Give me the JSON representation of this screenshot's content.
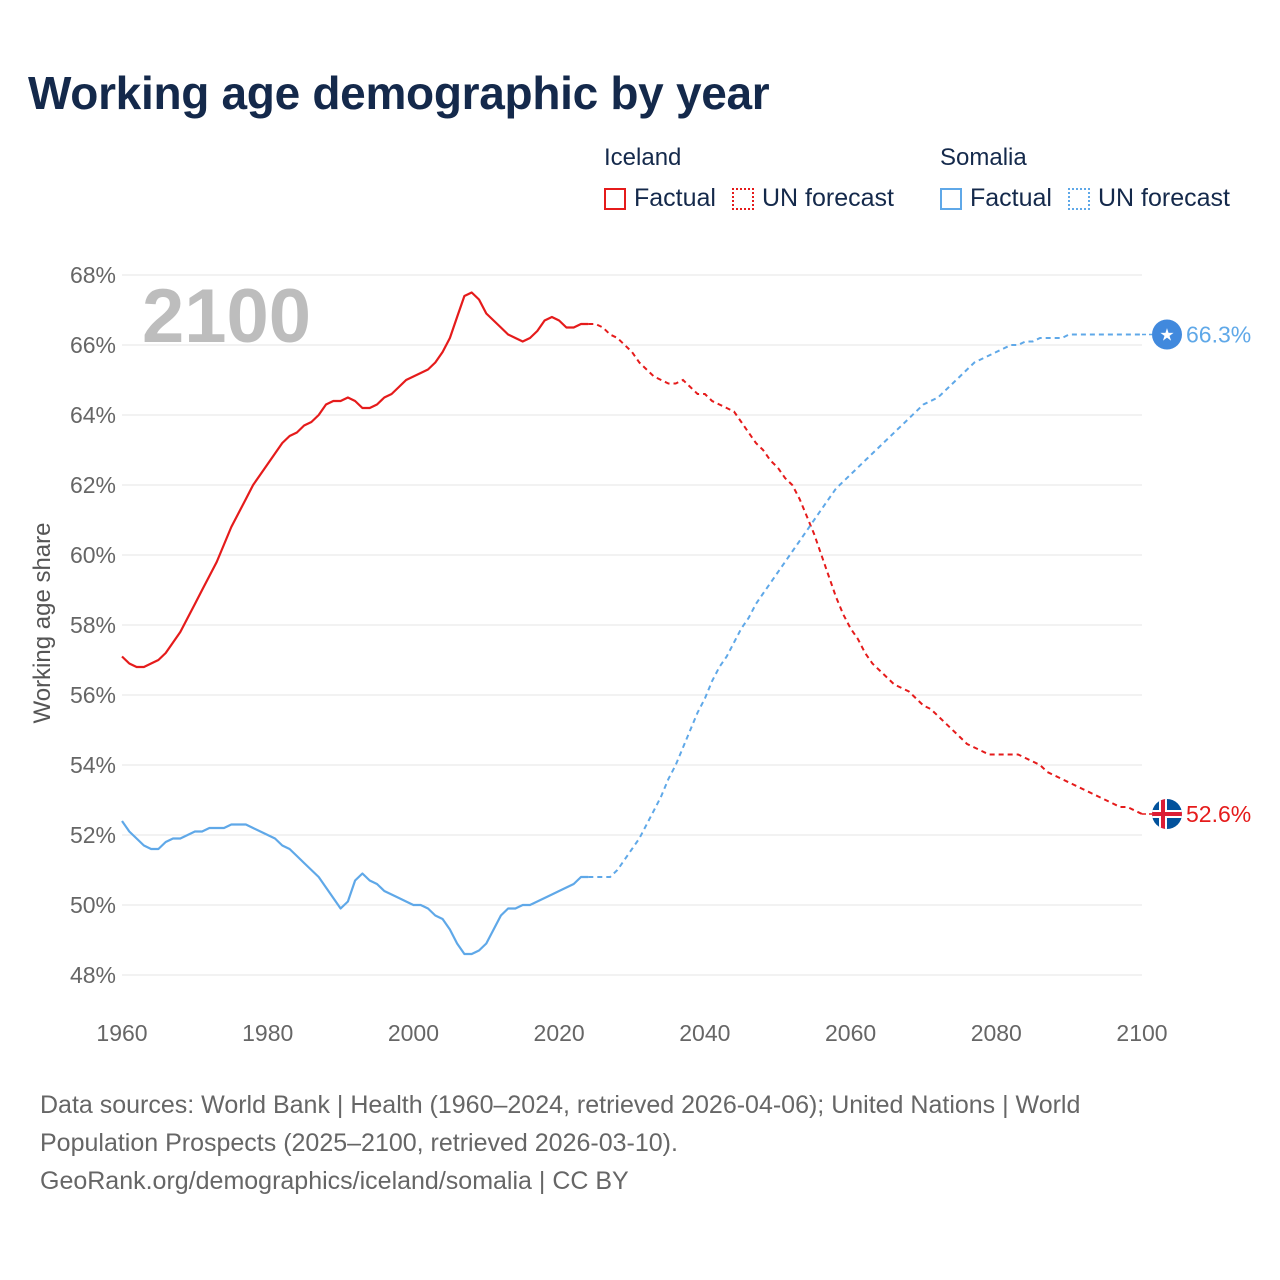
{
  "title": "Working age demographic by year",
  "legend": {
    "groups": [
      {
        "name": "Iceland",
        "factual_label": "Factual",
        "forecast_label": "UN forecast",
        "color": "#e51b1b"
      },
      {
        "name": "Somalia",
        "factual_label": "Factual",
        "forecast_label": "UN forecast",
        "color": "#5fa8e8"
      }
    ]
  },
  "year_overlay": "2100",
  "footer": {
    "line1": "Data sources: World Bank | Health (1960–2024, retrieved 2026-04-06); United Nations | World",
    "line2": "Population Prospects (2025–2100, retrieved 2026-03-10).",
    "line3": "GeoRank.org/demographics/iceland/somalia | CC BY"
  },
  "chart_data": {
    "type": "line",
    "title": "Working age demographic by year",
    "xlabel": "",
    "ylabel": "Working age share",
    "xlim": [
      1960,
      2100
    ],
    "ylim": [
      47,
      68.5
    ],
    "x_ticks": [
      1960,
      1980,
      2000,
      2020,
      2040,
      2060,
      2080,
      2100
    ],
    "y_ticks": [
      48,
      50,
      52,
      54,
      56,
      58,
      60,
      62,
      64,
      66,
      68
    ],
    "y_tick_labels": [
      "48%",
      "50%",
      "52%",
      "54%",
      "56%",
      "58%",
      "60%",
      "62%",
      "64%",
      "66%",
      "68%"
    ],
    "grid": true,
    "factual_end_year": 2024,
    "series": [
      {
        "name": "Iceland",
        "color": "#e51b1b",
        "end_label": "52.6%",
        "points": [
          [
            1960,
            57.1
          ],
          [
            1961,
            56.9
          ],
          [
            1962,
            56.8
          ],
          [
            1963,
            56.8
          ],
          [
            1964,
            56.9
          ],
          [
            1965,
            57.0
          ],
          [
            1966,
            57.2
          ],
          [
            1967,
            57.5
          ],
          [
            1968,
            57.8
          ],
          [
            1969,
            58.2
          ],
          [
            1970,
            58.6
          ],
          [
            1971,
            59.0
          ],
          [
            1972,
            59.4
          ],
          [
            1973,
            59.8
          ],
          [
            1974,
            60.3
          ],
          [
            1975,
            60.8
          ],
          [
            1976,
            61.2
          ],
          [
            1977,
            61.6
          ],
          [
            1978,
            62.0
          ],
          [
            1979,
            62.3
          ],
          [
            1980,
            62.6
          ],
          [
            1981,
            62.9
          ],
          [
            1982,
            63.2
          ],
          [
            1983,
            63.4
          ],
          [
            1984,
            63.5
          ],
          [
            1985,
            63.7
          ],
          [
            1986,
            63.8
          ],
          [
            1987,
            64.0
          ],
          [
            1988,
            64.3
          ],
          [
            1989,
            64.4
          ],
          [
            1990,
            64.4
          ],
          [
            1991,
            64.5
          ],
          [
            1992,
            64.4
          ],
          [
            1993,
            64.2
          ],
          [
            1994,
            64.2
          ],
          [
            1995,
            64.3
          ],
          [
            1996,
            64.5
          ],
          [
            1997,
            64.6
          ],
          [
            1998,
            64.8
          ],
          [
            1999,
            65.0
          ],
          [
            2000,
            65.1
          ],
          [
            2001,
            65.2
          ],
          [
            2002,
            65.3
          ],
          [
            2003,
            65.5
          ],
          [
            2004,
            65.8
          ],
          [
            2005,
            66.2
          ],
          [
            2006,
            66.8
          ],
          [
            2007,
            67.4
          ],
          [
            2008,
            67.5
          ],
          [
            2009,
            67.3
          ],
          [
            2010,
            66.9
          ],
          [
            2011,
            66.7
          ],
          [
            2012,
            66.5
          ],
          [
            2013,
            66.3
          ],
          [
            2014,
            66.2
          ],
          [
            2015,
            66.1
          ],
          [
            2016,
            66.2
          ],
          [
            2017,
            66.4
          ],
          [
            2018,
            66.7
          ],
          [
            2019,
            66.8
          ],
          [
            2020,
            66.7
          ],
          [
            2021,
            66.5
          ],
          [
            2022,
            66.5
          ],
          [
            2023,
            66.6
          ],
          [
            2024,
            66.6
          ],
          [
            2025,
            66.6
          ],
          [
            2026,
            66.5
          ],
          [
            2027,
            66.3
          ],
          [
            2028,
            66.2
          ],
          [
            2029,
            66.0
          ],
          [
            2030,
            65.8
          ],
          [
            2031,
            65.5
          ],
          [
            2032,
            65.3
          ],
          [
            2033,
            65.1
          ],
          [
            2034,
            65.0
          ],
          [
            2035,
            64.9
          ],
          [
            2036,
            64.9
          ],
          [
            2037,
            65.0
          ],
          [
            2038,
            64.8
          ],
          [
            2039,
            64.6
          ],
          [
            2040,
            64.6
          ],
          [
            2041,
            64.4
          ],
          [
            2042,
            64.3
          ],
          [
            2043,
            64.2
          ],
          [
            2044,
            64.1
          ],
          [
            2045,
            63.8
          ],
          [
            2046,
            63.5
          ],
          [
            2047,
            63.2
          ],
          [
            2048,
            63.0
          ],
          [
            2049,
            62.7
          ],
          [
            2050,
            62.5
          ],
          [
            2051,
            62.2
          ],
          [
            2052,
            62.0
          ],
          [
            2053,
            61.6
          ],
          [
            2054,
            61.1
          ],
          [
            2055,
            60.6
          ],
          [
            2056,
            60.0
          ],
          [
            2057,
            59.4
          ],
          [
            2058,
            58.8
          ],
          [
            2059,
            58.3
          ],
          [
            2060,
            57.9
          ],
          [
            2061,
            57.6
          ],
          [
            2062,
            57.2
          ],
          [
            2063,
            56.9
          ],
          [
            2064,
            56.7
          ],
          [
            2065,
            56.5
          ],
          [
            2066,
            56.3
          ],
          [
            2067,
            56.2
          ],
          [
            2068,
            56.1
          ],
          [
            2069,
            55.9
          ],
          [
            2070,
            55.7
          ],
          [
            2071,
            55.6
          ],
          [
            2072,
            55.4
          ],
          [
            2073,
            55.2
          ],
          [
            2074,
            55.0
          ],
          [
            2075,
            54.8
          ],
          [
            2076,
            54.6
          ],
          [
            2077,
            54.5
          ],
          [
            2078,
            54.4
          ],
          [
            2079,
            54.3
          ],
          [
            2080,
            54.3
          ],
          [
            2081,
            54.3
          ],
          [
            2082,
            54.3
          ],
          [
            2083,
            54.3
          ],
          [
            2084,
            54.2
          ],
          [
            2085,
            54.1
          ],
          [
            2086,
            54.0
          ],
          [
            2087,
            53.8
          ],
          [
            2088,
            53.7
          ],
          [
            2089,
            53.6
          ],
          [
            2090,
            53.5
          ],
          [
            2091,
            53.4
          ],
          [
            2092,
            53.3
          ],
          [
            2093,
            53.2
          ],
          [
            2094,
            53.1
          ],
          [
            2095,
            53.0
          ],
          [
            2096,
            52.9
          ],
          [
            2097,
            52.8
          ],
          [
            2098,
            52.8
          ],
          [
            2099,
            52.7
          ],
          [
            2100,
            52.6
          ]
        ]
      },
      {
        "name": "Somalia",
        "color": "#5fa8e8",
        "end_label": "66.3%",
        "points": [
          [
            1960,
            52.4
          ],
          [
            1961,
            52.1
          ],
          [
            1962,
            51.9
          ],
          [
            1963,
            51.7
          ],
          [
            1964,
            51.6
          ],
          [
            1965,
            51.6
          ],
          [
            1966,
            51.8
          ],
          [
            1967,
            51.9
          ],
          [
            1968,
            51.9
          ],
          [
            1969,
            52.0
          ],
          [
            1970,
            52.1
          ],
          [
            1971,
            52.1
          ],
          [
            1972,
            52.2
          ],
          [
            1973,
            52.2
          ],
          [
            1974,
            52.2
          ],
          [
            1975,
            52.3
          ],
          [
            1976,
            52.3
          ],
          [
            1977,
            52.3
          ],
          [
            1978,
            52.2
          ],
          [
            1979,
            52.1
          ],
          [
            1980,
            52.0
          ],
          [
            1981,
            51.9
          ],
          [
            1982,
            51.7
          ],
          [
            1983,
            51.6
          ],
          [
            1984,
            51.4
          ],
          [
            1985,
            51.2
          ],
          [
            1986,
            51.0
          ],
          [
            1987,
            50.8
          ],
          [
            1988,
            50.5
          ],
          [
            1989,
            50.2
          ],
          [
            1990,
            49.9
          ],
          [
            1991,
            50.1
          ],
          [
            1992,
            50.7
          ],
          [
            1993,
            50.9
          ],
          [
            1994,
            50.7
          ],
          [
            1995,
            50.6
          ],
          [
            1996,
            50.4
          ],
          [
            1997,
            50.3
          ],
          [
            1998,
            50.2
          ],
          [
            1999,
            50.1
          ],
          [
            2000,
            50.0
          ],
          [
            2001,
            50.0
          ],
          [
            2002,
            49.9
          ],
          [
            2003,
            49.7
          ],
          [
            2004,
            49.6
          ],
          [
            2005,
            49.3
          ],
          [
            2006,
            48.9
          ],
          [
            2007,
            48.6
          ],
          [
            2008,
            48.6
          ],
          [
            2009,
            48.7
          ],
          [
            2010,
            48.9
          ],
          [
            2011,
            49.3
          ],
          [
            2012,
            49.7
          ],
          [
            2013,
            49.9
          ],
          [
            2014,
            49.9
          ],
          [
            2015,
            50.0
          ],
          [
            2016,
            50.0
          ],
          [
            2017,
            50.1
          ],
          [
            2018,
            50.2
          ],
          [
            2019,
            50.3
          ],
          [
            2020,
            50.4
          ],
          [
            2021,
            50.5
          ],
          [
            2022,
            50.6
          ],
          [
            2023,
            50.8
          ],
          [
            2024,
            50.8
          ],
          [
            2025,
            50.8
          ],
          [
            2026,
            50.8
          ],
          [
            2027,
            50.8
          ],
          [
            2028,
            51.0
          ],
          [
            2029,
            51.3
          ],
          [
            2030,
            51.6
          ],
          [
            2031,
            51.9
          ],
          [
            2032,
            52.3
          ],
          [
            2033,
            52.7
          ],
          [
            2034,
            53.1
          ],
          [
            2035,
            53.6
          ],
          [
            2036,
            54.0
          ],
          [
            2037,
            54.5
          ],
          [
            2038,
            55.0
          ],
          [
            2039,
            55.5
          ],
          [
            2040,
            55.9
          ],
          [
            2041,
            56.4
          ],
          [
            2042,
            56.8
          ],
          [
            2043,
            57.1
          ],
          [
            2044,
            57.5
          ],
          [
            2045,
            57.9
          ],
          [
            2046,
            58.2
          ],
          [
            2047,
            58.6
          ],
          [
            2048,
            58.9
          ],
          [
            2049,
            59.2
          ],
          [
            2050,
            59.5
          ],
          [
            2051,
            59.8
          ],
          [
            2052,
            60.1
          ],
          [
            2053,
            60.4
          ],
          [
            2054,
            60.7
          ],
          [
            2055,
            61.0
          ],
          [
            2056,
            61.3
          ],
          [
            2057,
            61.6
          ],
          [
            2058,
            61.9
          ],
          [
            2059,
            62.1
          ],
          [
            2060,
            62.3
          ],
          [
            2061,
            62.5
          ],
          [
            2062,
            62.7
          ],
          [
            2063,
            62.9
          ],
          [
            2064,
            63.1
          ],
          [
            2065,
            63.3
          ],
          [
            2066,
            63.5
          ],
          [
            2067,
            63.7
          ],
          [
            2068,
            63.9
          ],
          [
            2069,
            64.1
          ],
          [
            2070,
            64.3
          ],
          [
            2071,
            64.4
          ],
          [
            2072,
            64.5
          ],
          [
            2073,
            64.7
          ],
          [
            2074,
            64.9
          ],
          [
            2075,
            65.1
          ],
          [
            2076,
            65.3
          ],
          [
            2077,
            65.5
          ],
          [
            2078,
            65.6
          ],
          [
            2079,
            65.7
          ],
          [
            2080,
            65.8
          ],
          [
            2081,
            65.9
          ],
          [
            2082,
            66.0
          ],
          [
            2083,
            66.0
          ],
          [
            2084,
            66.1
          ],
          [
            2085,
            66.1
          ],
          [
            2086,
            66.2
          ],
          [
            2087,
            66.2
          ],
          [
            2088,
            66.2
          ],
          [
            2089,
            66.2
          ],
          [
            2090,
            66.3
          ],
          [
            2091,
            66.3
          ],
          [
            2092,
            66.3
          ],
          [
            2093,
            66.3
          ],
          [
            2094,
            66.3
          ],
          [
            2095,
            66.3
          ],
          [
            2096,
            66.3
          ],
          [
            2097,
            66.3
          ],
          [
            2098,
            66.3
          ],
          [
            2099,
            66.3
          ],
          [
            2100,
            66.3
          ]
        ]
      }
    ]
  }
}
